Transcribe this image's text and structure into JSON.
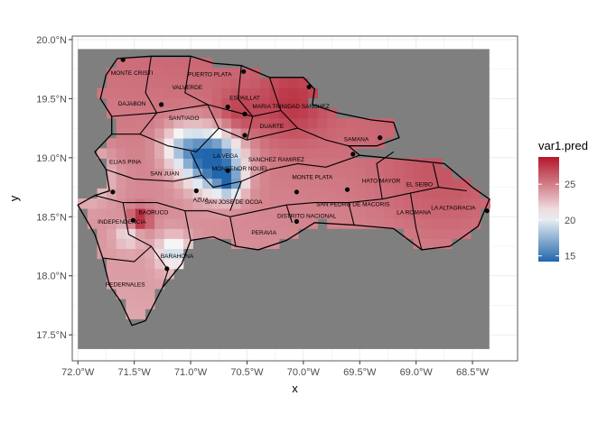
{
  "colors": {
    "nodata": "#7f7f7f",
    "panel_bg": "#ffffff",
    "grid": "#ebebeb",
    "border": "#333333",
    "low": "#2166ac",
    "mid": "#f7f7f7",
    "high": "#b2182b"
  },
  "chart_data": {
    "type": "heatmap",
    "title": "",
    "xlabel": "x",
    "ylabel": "y",
    "xlim": [
      -72.05,
      -68.1
    ],
    "ylim": [
      17.28,
      20.03
    ],
    "x_ticks": [
      -72.0,
      -71.5,
      -71.0,
      -70.5,
      -70.0,
      -69.5,
      -69.0,
      -68.5
    ],
    "x_tick_labels": [
      "72.0°W",
      "71.5°W",
      "71.0°W",
      "70.5°W",
      "70.0°W",
      "69.5°W",
      "69.0°W",
      "68.5°W"
    ],
    "y_ticks": [
      17.5,
      18.0,
      18.5,
      19.0,
      19.5,
      20.0
    ],
    "y_tick_labels": [
      "17.5°N",
      "18.0°N",
      "18.5°N",
      "19.0°N",
      "19.5°N",
      "20.0°N"
    ],
    "grid_extent": {
      "lon": [
        -72.0,
        -68.35
      ],
      "lat": [
        17.38,
        19.92
      ]
    },
    "legend": {
      "title": "var1.pred",
      "position": "right",
      "range": [
        14.2,
        28.8
      ],
      "ticks": [
        15,
        20,
        25
      ],
      "tick_labels": [
        "15",
        "20",
        "25"
      ]
    },
    "provinces": [
      {
        "name": "MONTE CRISTI",
        "lon": -71.52,
        "lat": 19.7
      },
      {
        "name": "PUERTO PLATA",
        "lon": -70.83,
        "lat": 19.69
      },
      {
        "name": "VALVERDE",
        "lon": -71.03,
        "lat": 19.58
      },
      {
        "name": "ESPAILLAT",
        "lon": -70.52,
        "lat": 19.49
      },
      {
        "name": "DAJABON",
        "lon": -71.52,
        "lat": 19.44
      },
      {
        "name": "MARIA TRINIDAD SANCHEZ",
        "lon": -70.11,
        "lat": 19.42
      },
      {
        "name": "SANTIAGO",
        "lon": -71.06,
        "lat": 19.32
      },
      {
        "name": "DUARTE",
        "lon": -70.28,
        "lat": 19.25
      },
      {
        "name": "SAMANA",
        "lon": -69.53,
        "lat": 19.14
      },
      {
        "name": "ELIAS PINA",
        "lon": -71.58,
        "lat": 18.95
      },
      {
        "name": "LA VEGA",
        "lon": -70.69,
        "lat": 19.0
      },
      {
        "name": "SANCHEZ RAMIREZ",
        "lon": -70.24,
        "lat": 18.97
      },
      {
        "name": "MONSENOR NOUEL",
        "lon": -70.56,
        "lat": 18.89
      },
      {
        "name": "SAN JUAN",
        "lon": -71.23,
        "lat": 18.85
      },
      {
        "name": "MONTE PLATA",
        "lon": -69.92,
        "lat": 18.82
      },
      {
        "name": "HATO MAYOR",
        "lon": -69.31,
        "lat": 18.79
      },
      {
        "name": "EL SEIBO",
        "lon": -68.97,
        "lat": 18.76
      },
      {
        "name": "AZUA",
        "lon": -70.91,
        "lat": 18.63
      },
      {
        "name": "SAN JOSE DE OCOA",
        "lon": -70.62,
        "lat": 18.61
      },
      {
        "name": "SAN PEDRO DE MACORIS",
        "lon": -69.56,
        "lat": 18.59
      },
      {
        "name": "LA ALTAGRACIA",
        "lon": -68.67,
        "lat": 18.56
      },
      {
        "name": "LA ROMANA",
        "lon": -69.02,
        "lat": 18.52
      },
      {
        "name": "BAORUCO",
        "lon": -71.33,
        "lat": 18.52
      },
      {
        "name": "DISTRITO NACIONAL",
        "lon": -69.97,
        "lat": 18.49
      },
      {
        "name": "INDEPENDENCIA",
        "lon": -71.61,
        "lat": 18.44
      },
      {
        "name": "PERAVIA",
        "lon": -70.35,
        "lat": 18.35
      },
      {
        "name": "BARAHONA",
        "lon": -71.12,
        "lat": 18.15
      },
      {
        "name": "PEDERNALES",
        "lon": -71.58,
        "lat": 17.91
      }
    ],
    "stations": [
      {
        "lon": -71.6,
        "lat": 19.83
      },
      {
        "lon": -70.53,
        "lat": 19.73
      },
      {
        "lon": -69.95,
        "lat": 19.6
      },
      {
        "lon": -71.26,
        "lat": 19.45
      },
      {
        "lon": -70.67,
        "lat": 19.43
      },
      {
        "lon": -70.52,
        "lat": 19.37
      },
      {
        "lon": -70.52,
        "lat": 19.19
      },
      {
        "lon": -69.32,
        "lat": 19.17
      },
      {
        "lon": -69.56,
        "lat": 19.03
      },
      {
        "lon": -70.67,
        "lat": 18.89
      },
      {
        "lon": -70.95,
        "lat": 18.72
      },
      {
        "lon": -71.69,
        "lat": 18.71
      },
      {
        "lon": -70.06,
        "lat": 18.71
      },
      {
        "lon": -69.61,
        "lat": 18.73
      },
      {
        "lon": -71.51,
        "lat": 18.47
      },
      {
        "lon": -70.06,
        "lat": 18.46
      },
      {
        "lon": -71.21,
        "lat": 18.06
      },
      {
        "lon": -68.37,
        "lat": 18.55
      }
    ],
    "hotspots": [
      {
        "lon": -70.8,
        "lat": 18.98,
        "r": 0.25,
        "v": -12.0
      },
      {
        "lon": -70.65,
        "lat": 18.78,
        "r": 0.12,
        "v": -6.0
      },
      {
        "lon": -71.08,
        "lat": 19.1,
        "r": 0.18,
        "v": -5.0
      },
      {
        "lon": -71.15,
        "lat": 18.2,
        "r": 0.15,
        "v": -5.0
      },
      {
        "lon": -71.55,
        "lat": 18.35,
        "r": 0.12,
        "v": -3.0
      },
      {
        "lon": -71.9,
        "lat": 18.85,
        "r": 0.2,
        "v": -4.0
      },
      {
        "lon": -70.6,
        "lat": 19.35,
        "r": 0.2,
        "v": 2.0
      },
      {
        "lon": -71.45,
        "lat": 18.48,
        "r": 0.1,
        "v": 4.5
      },
      {
        "lon": -70.1,
        "lat": 19.45,
        "r": 0.3,
        "v": 2.0
      },
      {
        "lon": -68.8,
        "lat": 18.8,
        "r": 0.5,
        "v": 1.0
      }
    ]
  }
}
